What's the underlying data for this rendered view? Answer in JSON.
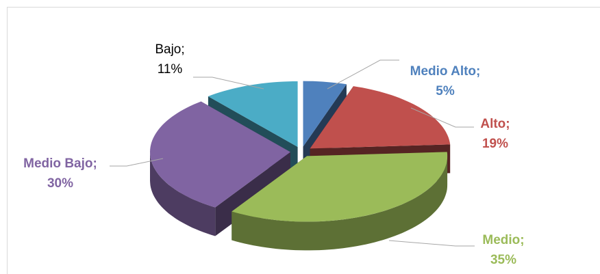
{
  "chart_data": {
    "type": "pie3d",
    "categories": [
      "Medio Alto;",
      "Alto;",
      "Medio;",
      "Medio Bajo;",
      "Bajo;"
    ],
    "values": [
      5,
      19,
      35,
      30,
      11
    ],
    "value_labels": [
      "5%",
      "19%",
      "35%",
      "30%",
      "11%"
    ],
    "colors": [
      "#4f81bd",
      "#c0504d",
      "#9bbb59",
      "#8064a2",
      "#4bacc6"
    ],
    "label_colors": [
      "#4f81bd",
      "#c0504d",
      "#9bbb59",
      "#8064a2",
      "#000000"
    ],
    "label_bold": [
      true,
      true,
      true,
      true,
      false
    ]
  }
}
